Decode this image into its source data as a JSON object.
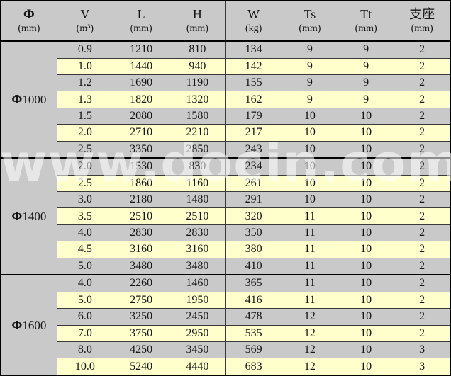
{
  "watermark": {
    "text": "www.docin.com"
  },
  "colors": {
    "row_gray": "#c9c9c9",
    "row_yellow": "#ffffcc",
    "border_thin": "#3a3a3a",
    "border_heavy": "#000000",
    "text": "#161616",
    "watermark": "rgba(255,255,255,0.55)"
  },
  "table": {
    "columns": [
      {
        "symbol": "Φ",
        "unit": "(mm)"
      },
      {
        "symbol": "V",
        "unit": "(m³)"
      },
      {
        "symbol": "L",
        "unit": "(mm)"
      },
      {
        "symbol": "H",
        "unit": "(mm)"
      },
      {
        "symbol": "W",
        "unit": "(kg)"
      },
      {
        "symbol": "Ts",
        "unit": "(mm)"
      },
      {
        "symbol": "Tt",
        "unit": "(mm)"
      },
      {
        "symbol": "支座",
        "unit": "(mm)"
      }
    ],
    "groups": [
      {
        "label_symbol": "Φ",
        "label_value": "1000",
        "rows": [
          [
            "0.9",
            "1210",
            "810",
            "134",
            "9",
            "9",
            "2"
          ],
          [
            "1.0",
            "1440",
            "940",
            "142",
            "9",
            "9",
            "2"
          ],
          [
            "1.2",
            "1690",
            "1190",
            "155",
            "9",
            "9",
            "2"
          ],
          [
            "1.3",
            "1820",
            "1320",
            "162",
            "9",
            "9",
            "2"
          ],
          [
            "1.5",
            "2080",
            "1580",
            "179",
            "10",
            "10",
            "2"
          ],
          [
            "2.0",
            "2710",
            "2210",
            "217",
            "10",
            "10",
            "2"
          ],
          [
            "2.5",
            "3350",
            "2850",
            "243",
            "10",
            "10",
            "2"
          ]
        ]
      },
      {
        "label_symbol": "Φ",
        "label_value": "1400",
        "rows": [
          [
            "2.0",
            "1530",
            "830",
            "234",
            "10",
            "10",
            "2"
          ],
          [
            "2.5",
            "1860",
            "1160",
            "261",
            "10",
            "10",
            "2"
          ],
          [
            "3.0",
            "2180",
            "1480",
            "291",
            "10",
            "10",
            "2"
          ],
          [
            "3.5",
            "2510",
            "2510",
            "320",
            "11",
            "10",
            "2"
          ],
          [
            "4.0",
            "2830",
            "2830",
            "350",
            "11",
            "10",
            "2"
          ],
          [
            "4.5",
            "3160",
            "3160",
            "380",
            "11",
            "10",
            "2"
          ],
          [
            "5.0",
            "3480",
            "3480",
            "410",
            "11",
            "10",
            "2"
          ]
        ]
      },
      {
        "label_symbol": "Φ",
        "label_value": "1600",
        "rows": [
          [
            "4.0",
            "2260",
            "1460",
            "365",
            "11",
            "10",
            "2"
          ],
          [
            "5.0",
            "2750",
            "1950",
            "416",
            "11",
            "10",
            "2"
          ],
          [
            "6.0",
            "3250",
            "2450",
            "478",
            "12",
            "10",
            "2"
          ],
          [
            "7.0",
            "3750",
            "2950",
            "535",
            "12",
            "10",
            "2"
          ],
          [
            "8.0",
            "4250",
            "3450",
            "569",
            "12",
            "10",
            "3"
          ],
          [
            "10.0",
            "5240",
            "4440",
            "683",
            "12",
            "10",
            "3"
          ]
        ]
      }
    ]
  }
}
